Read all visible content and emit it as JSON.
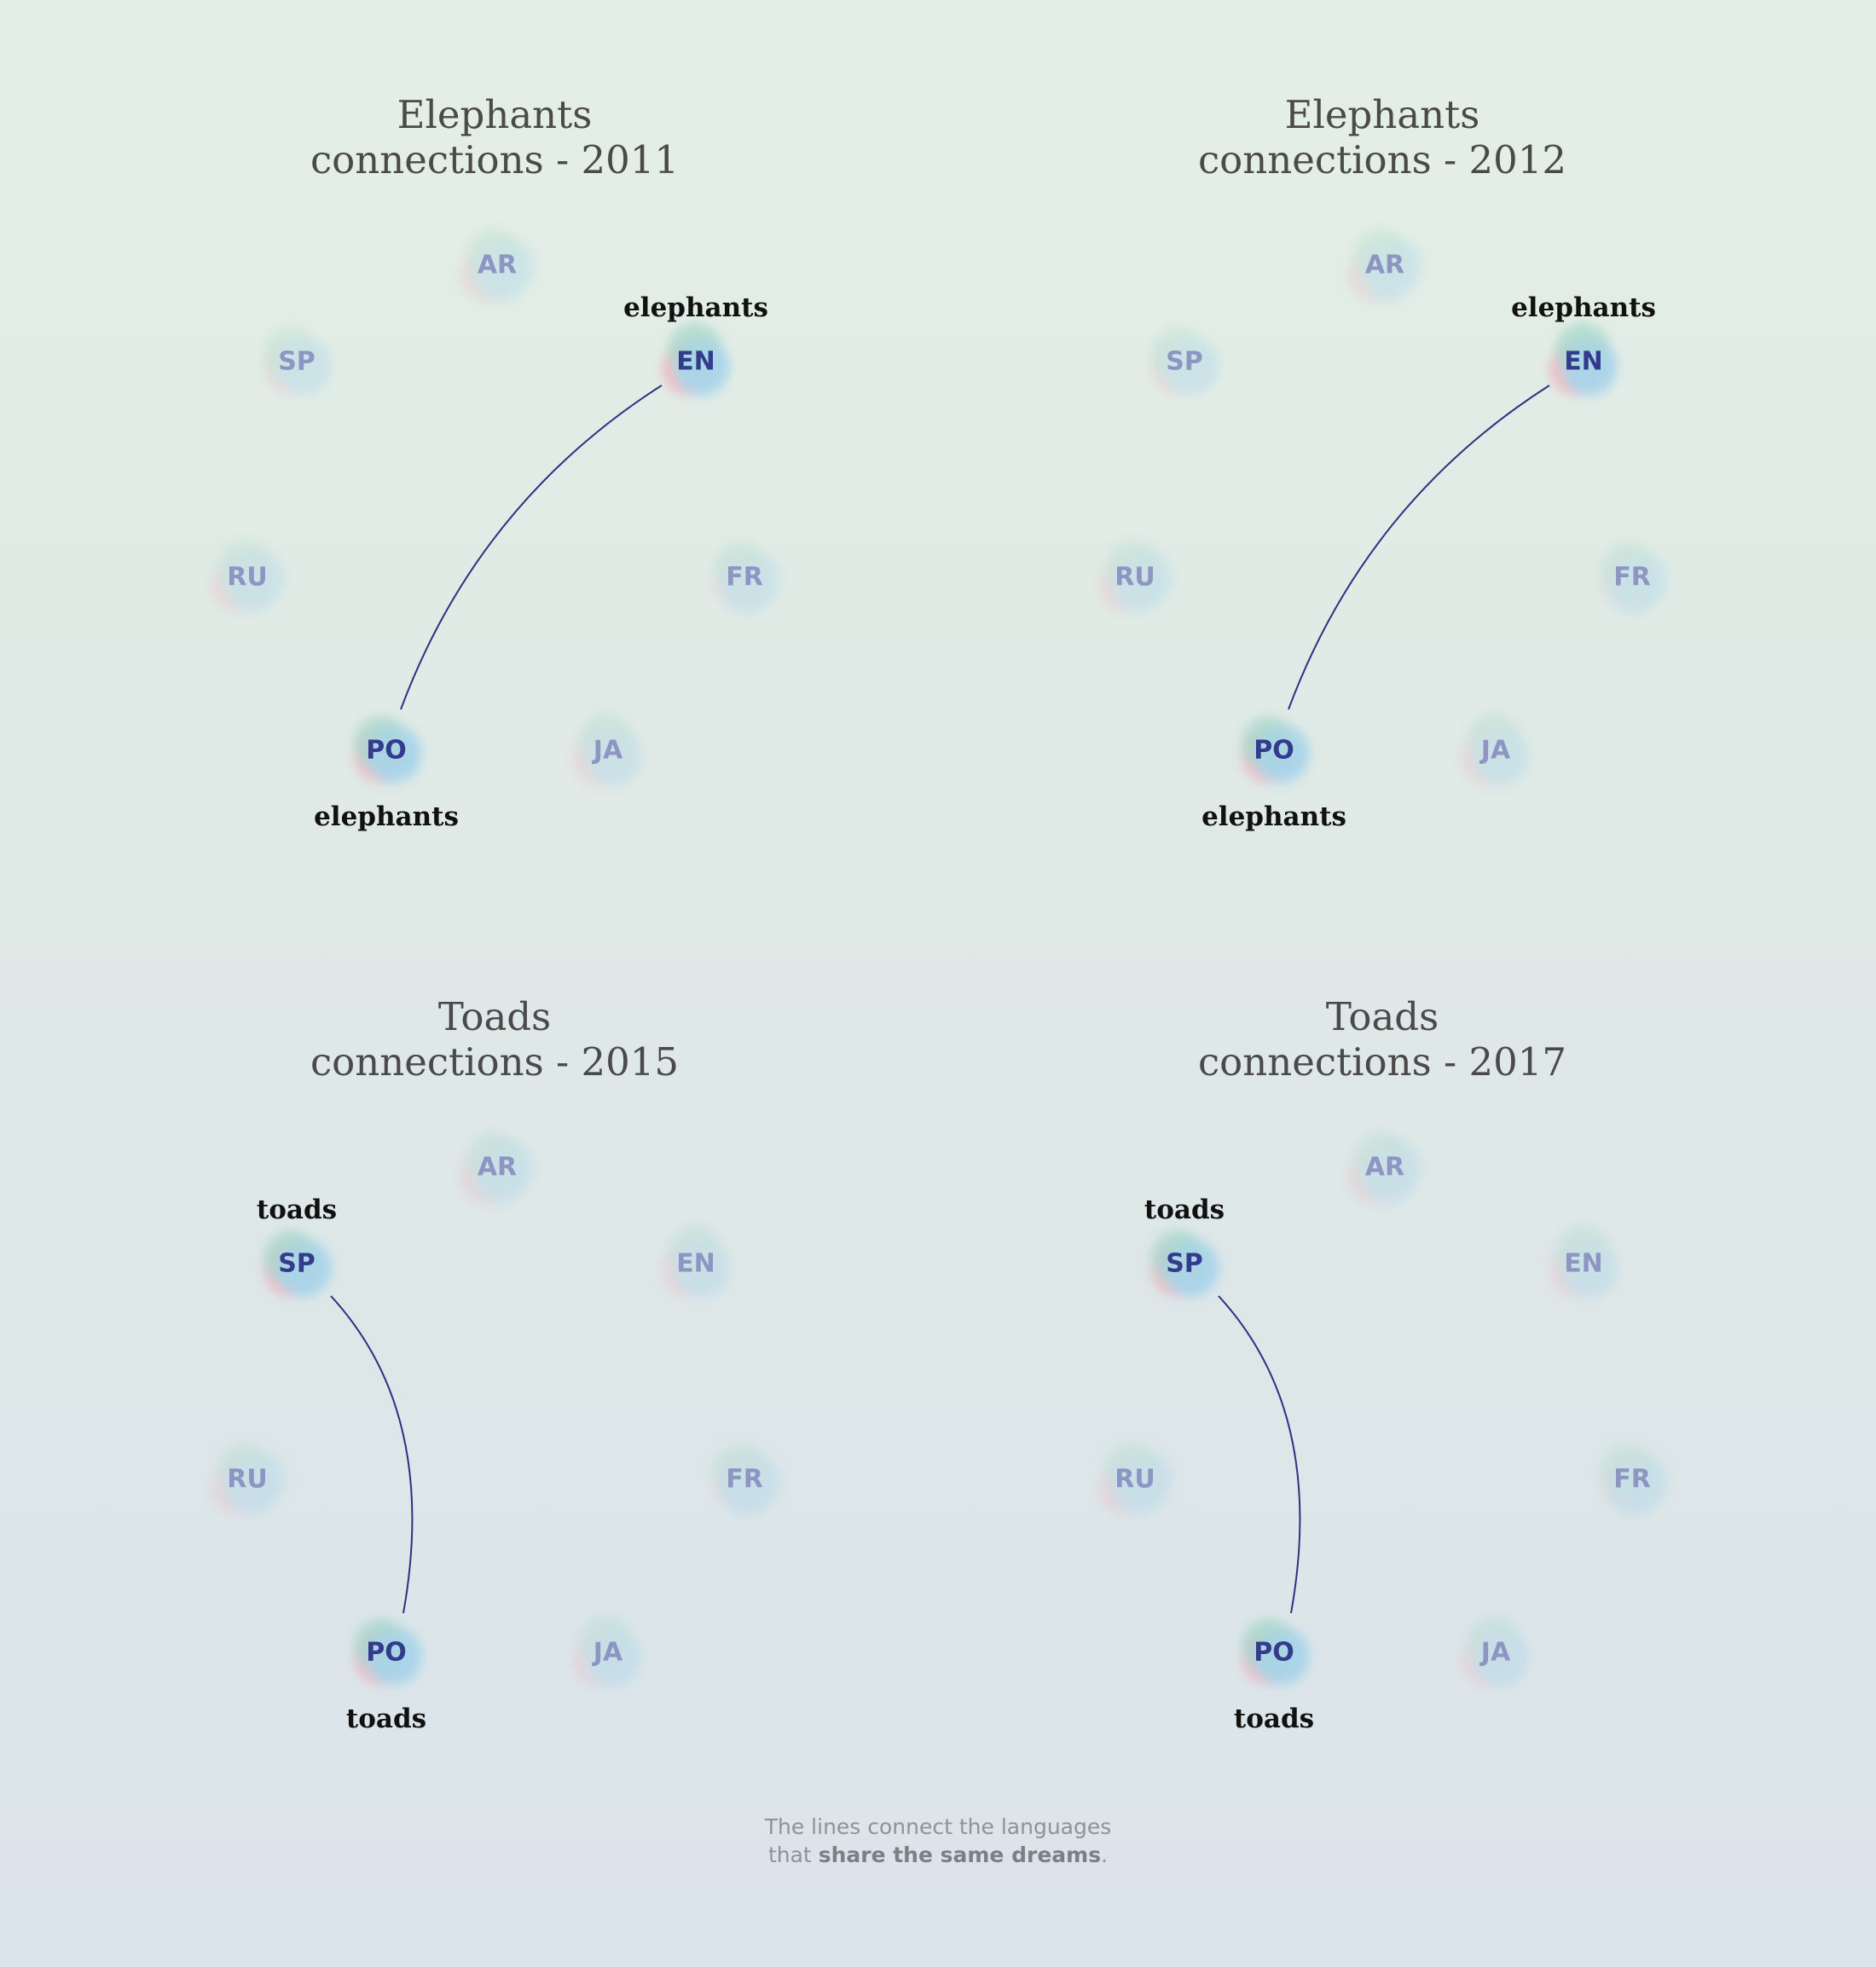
{
  "panels": [
    {
      "title_line1": "Elephants",
      "title_line2": "connections - 2011",
      "nodes": [
        "AR",
        "EN",
        "FR",
        "JA",
        "PO",
        "RU",
        "SP"
      ],
      "connection": {
        "from": "EN",
        "to": "PO",
        "from_word": "elephants",
        "to_word": "elephants"
      }
    },
    {
      "title_line1": "Elephants",
      "title_line2": "connections - 2012",
      "nodes": [
        "AR",
        "EN",
        "FR",
        "JA",
        "PO",
        "RU",
        "SP"
      ],
      "connection": {
        "from": "EN",
        "to": "PO",
        "from_word": "elephants",
        "to_word": "elephants"
      }
    },
    {
      "title_line1": "Toads",
      "title_line2": "connections - 2015",
      "nodes": [
        "AR",
        "EN",
        "FR",
        "JA",
        "PO",
        "RU",
        "SP"
      ],
      "connection": {
        "from": "SP",
        "to": "PO",
        "from_word": "toads",
        "to_word": "toads"
      }
    },
    {
      "title_line1": "Toads",
      "title_line2": "connections - 2017",
      "nodes": [
        "AR",
        "EN",
        "FR",
        "JA",
        "PO",
        "RU",
        "SP"
      ],
      "connection": {
        "from": "SP",
        "to": "PO",
        "from_word": "toads",
        "to_word": "toads"
      }
    }
  ],
  "footer": {
    "line1": "The lines connect the languages",
    "line2_prefix": "that ",
    "line2_bold": "share the same dreams",
    "line2_suffix": "."
  },
  "colors": {
    "line": "#2b3380",
    "active_text": "#343b8c",
    "dim_text": "#8d95c2",
    "blob_pink": "#f2a6b4",
    "blob_blue": "#9fd2ec",
    "blob_green": "#9fd4c4"
  }
}
